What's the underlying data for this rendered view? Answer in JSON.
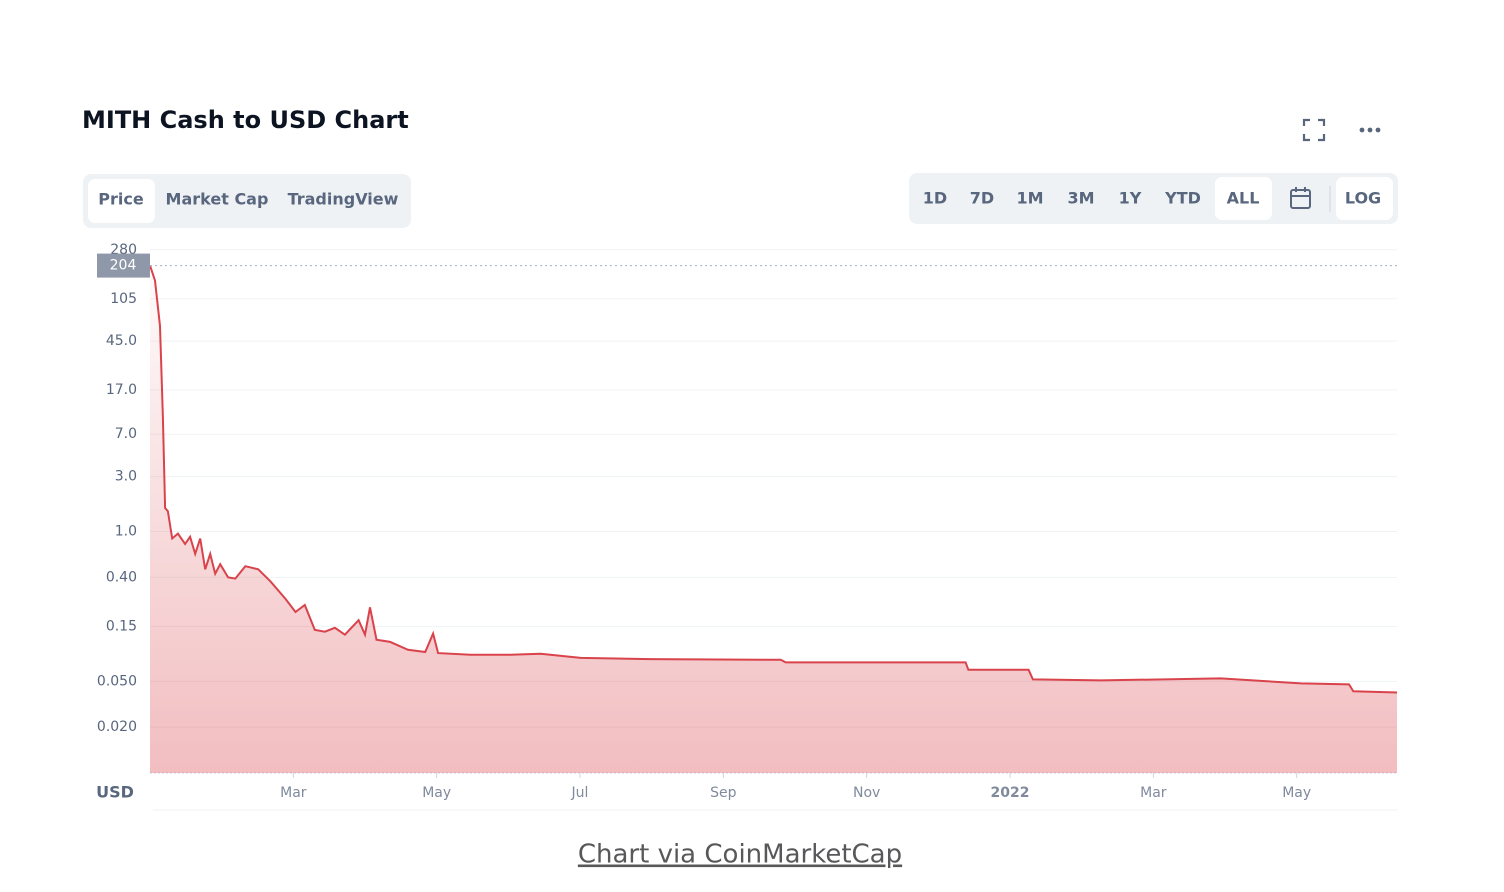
{
  "header": {
    "tabs": [
      "Price",
      "Market Cap",
      "TradingView"
    ],
    "ranges": [
      "1D",
      "7D",
      "1M",
      "3M",
      "1Y",
      "YTD",
      "ALL"
    ],
    "log_button": "LOG"
  },
  "caption": "Chart via CoinMarketCap",
  "chart_data": {
    "type": "line",
    "title": "MITH Cash to USD Chart",
    "y_axis_label": "USD",
    "log_scale": true,
    "grid": true,
    "color": "#d9434b",
    "current_price": 204,
    "xlim": [
      0,
      17.4
    ],
    "ylim": [
      0.008,
      290
    ],
    "xticks": [
      {
        "value": 2,
        "label": "Mar"
      },
      {
        "value": 4,
        "label": "May"
      },
      {
        "value": 6,
        "label": "Jul"
      },
      {
        "value": 8,
        "label": "Sep"
      },
      {
        "value": 10,
        "label": "Nov"
      },
      {
        "value": 12,
        "label": "2022"
      },
      {
        "value": 14,
        "label": "Mar"
      },
      {
        "value": 16,
        "label": "May"
      }
    ],
    "yticks": [
      280,
      105,
      {
        "value": 45,
        "label": "45.0"
      },
      {
        "value": 17,
        "label": "17.0"
      },
      {
        "value": 7,
        "label": "7.0"
      },
      {
        "value": 3,
        "label": "3.0"
      },
      {
        "value": 1,
        "label": "1.0"
      },
      {
        "value": 0.4,
        "label": "0.40"
      },
      0.15,
      {
        "value": 0.05,
        "label": "0.050"
      },
      {
        "value": 0.02,
        "label": "0.020"
      }
    ],
    "x": [
      0,
      0.07,
      0.14,
      0.18,
      0.21,
      0.25,
      0.31,
      0.39,
      0.49,
      0.56,
      0.63,
      0.7,
      0.77,
      0.84,
      0.91,
      0.98,
      1.09,
      1.19,
      1.33,
      1.51,
      1.68,
      1.89,
      2.03,
      2.16,
      2.3,
      2.44,
      2.58,
      2.72,
      2.91,
      3.0,
      3.07,
      3.16,
      3.35,
      3.6,
      3.84,
      3.95,
      4.02,
      4.47,
      5.03,
      5.45,
      6.01,
      6.98,
      8.8,
      8.87,
      11.38,
      11.42,
      12.26,
      12.32,
      13.27,
      14.94,
      16.06,
      16.73,
      16.79,
      17.4
    ],
    "values": [
      204,
      151,
      61,
      9.8,
      1.6,
      1.5,
      0.87,
      0.96,
      0.78,
      0.9,
      0.64,
      0.87,
      0.47,
      0.64,
      0.43,
      0.52,
      0.4,
      0.39,
      0.5,
      0.47,
      0.37,
      0.26,
      0.2,
      0.23,
      0.14,
      0.135,
      0.146,
      0.127,
      0.17,
      0.127,
      0.22,
      0.115,
      0.11,
      0.094,
      0.09,
      0.13,
      0.088,
      0.085,
      0.085,
      0.087,
      0.08,
      0.078,
      0.077,
      0.073,
      0.073,
      0.063,
      0.063,
      0.052,
      0.051,
      0.053,
      0.048,
      0.047,
      0.041,
      0.04
    ]
  }
}
